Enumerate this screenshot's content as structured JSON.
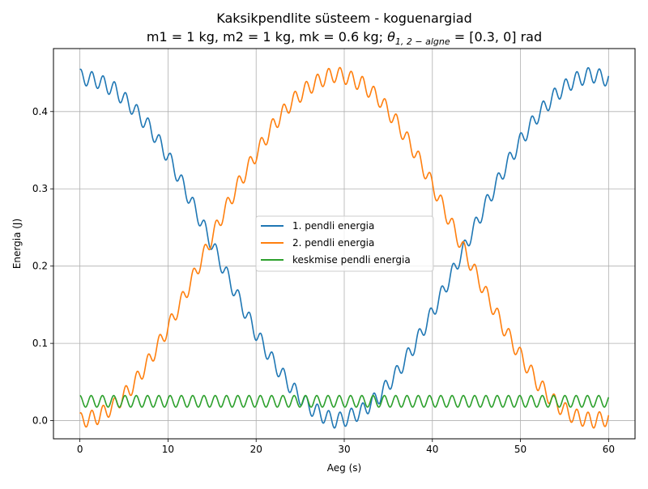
{
  "chart_data": {
    "type": "line",
    "title_line1": "Kaksikpendlite süsteem - koguenargiad",
    "title_line2_prefix": "m1 = 1 kg, m2 = 1 kg, mk = 0.6 kg; ",
    "title_theta_symbol": "θ",
    "title_theta_sub": "1, 2 − algne",
    "title_line2_suffix": " = [0.3, 0] rad",
    "xlabel": "Aeg (s)",
    "ylabel": "Energia (J)",
    "xlim": [
      -3,
      63
    ],
    "ylim": [
      -0.0235,
      0.4815
    ],
    "xticks": [
      0,
      10,
      20,
      30,
      40,
      50,
      60
    ],
    "xtick_labels": [
      "0",
      "10",
      "20",
      "30",
      "40",
      "50",
      "60"
    ],
    "yticks": [
      0.0,
      0.1,
      0.2,
      0.3,
      0.4
    ],
    "ytick_labels": [
      "0.0",
      "0.1",
      "0.2",
      "0.3",
      "0.4"
    ],
    "grid": true,
    "legend_position": "center",
    "series": [
      {
        "name": "1. pendli energia",
        "color": "#1f77b4",
        "x": [
          0,
          2,
          4,
          6,
          8,
          10,
          12,
          14,
          16,
          18,
          20,
          22,
          24,
          26,
          28,
          29,
          30,
          32,
          34,
          36,
          38,
          40,
          42,
          44,
          46,
          48,
          50,
          52,
          54,
          56,
          58,
          60
        ],
        "values": [
          0.445,
          0.44,
          0.428,
          0.405,
          0.378,
          0.342,
          0.298,
          0.252,
          0.204,
          0.158,
          0.113,
          0.075,
          0.043,
          0.018,
          0.004,
          0.0,
          0.002,
          0.012,
          0.032,
          0.062,
          0.098,
          0.14,
          0.185,
          0.232,
          0.278,
          0.322,
          0.362,
          0.396,
          0.422,
          0.44,
          0.448,
          0.442
        ],
        "ripple_amplitude": 0.01,
        "ripple_period": 1.28
      },
      {
        "name": "2. pendli energia",
        "color": "#ff7f0e",
        "x": [
          0,
          2,
          4,
          6,
          8,
          10,
          12,
          14,
          16,
          18,
          20,
          22,
          24,
          26,
          28,
          29,
          30,
          32,
          34,
          36,
          38,
          40,
          42,
          44,
          46,
          48,
          50,
          52,
          54,
          56,
          58,
          60
        ],
        "values": [
          0.0,
          0.005,
          0.02,
          0.045,
          0.08,
          0.12,
          0.165,
          0.213,
          0.262,
          0.306,
          0.345,
          0.383,
          0.412,
          0.432,
          0.445,
          0.448,
          0.446,
          0.436,
          0.416,
          0.385,
          0.348,
          0.305,
          0.258,
          0.211,
          0.166,
          0.122,
          0.084,
          0.048,
          0.022,
          0.006,
          0.0,
          0.003
        ],
        "ripple_amplitude": 0.01,
        "ripple_period": 1.28
      },
      {
        "name": "keskmise pendli energia",
        "color": "#2ca02c",
        "oscillation_center": 0.025,
        "oscillation_amplitude": 0.0075,
        "oscillation_period": 1.28,
        "oscillation_phase_max_at": 0.0
      }
    ]
  }
}
